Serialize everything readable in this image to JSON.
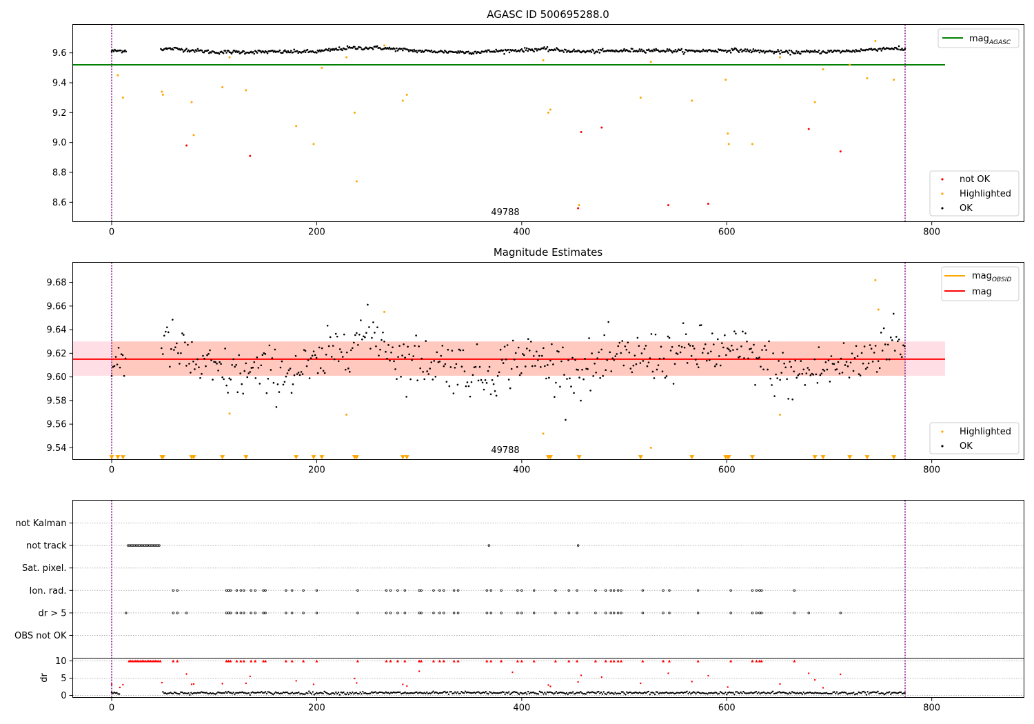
{
  "colors": {
    "ok": "#000000",
    "highlighted": "#ffa500",
    "not_ok": "#ff0000",
    "agasc_line": "#008000",
    "obsid_line": "#ffa500",
    "mag_line": "#ff0000",
    "band_outer": "#ffc0cb",
    "band_inner": "#ffa07a",
    "vline": "#800080"
  },
  "chart_data": [
    {
      "type": "scatter",
      "title": "AGASC ID 500695288.0",
      "xlim": [
        -38,
        890
      ],
      "ylim": [
        8.47,
        9.79
      ],
      "x_ticks": [
        0,
        200,
        400,
        600,
        800
      ],
      "y_ticks": [
        8.6,
        8.8,
        9.0,
        9.2,
        9.4,
        9.6
      ],
      "y_tick_labels": [
        "8.6",
        "8.8",
        "9.0",
        "9.2",
        "9.4",
        "9.6"
      ],
      "annotation": {
        "text": "49788",
        "x": 387,
        "y": 8.53
      },
      "vlines": [
        0,
        774
      ],
      "hline": {
        "label": "mag_AGASC",
        "legend_base": "mag",
        "legend_sub": "AGASC",
        "y": 9.52,
        "x_range": [
          -38,
          813
        ]
      },
      "legend": {
        "position": "upper right",
        "entries": [
          "mag_AGASC"
        ]
      },
      "legend2": {
        "position": "lower right",
        "entries": [
          "not OK",
          "Highlighted",
          "OK"
        ]
      },
      "ok_series": {
        "name": "OK",
        "x_start": 0,
        "x_end": 774,
        "gaps": [
          [
            14,
            48
          ]
        ],
        "mean": 9.615,
        "baseline": [
          [
            0,
            9.612
          ],
          [
            60,
            9.628
          ],
          [
            100,
            9.605
          ],
          [
            200,
            9.608
          ],
          [
            230,
            9.632
          ],
          [
            260,
            9.634
          ],
          [
            300,
            9.612
          ],
          [
            350,
            9.604
          ],
          [
            420,
            9.625
          ],
          [
            460,
            9.608
          ],
          [
            520,
            9.618
          ],
          [
            560,
            9.612
          ],
          [
            610,
            9.618
          ],
          [
            660,
            9.603
          ],
          [
            720,
            9.612
          ],
          [
            760,
            9.632
          ],
          [
            774,
            9.62
          ]
        ],
        "noise": 0.012
      },
      "highlighted": {
        "name": "Highlighted",
        "points": [
          [
            6,
            9.45
          ],
          [
            11,
            9.3
          ],
          [
            49,
            9.34
          ],
          [
            50,
            9.32
          ],
          [
            78,
            9.27
          ],
          [
            80,
            9.05
          ],
          [
            108,
            9.37
          ],
          [
            115,
            9.57
          ],
          [
            131,
            9.35
          ],
          [
            180,
            9.11
          ],
          [
            197,
            8.99
          ],
          [
            205,
            9.5
          ],
          [
            229,
            9.57
          ],
          [
            237,
            9.2
          ],
          [
            239,
            8.74
          ],
          [
            266,
            9.65
          ],
          [
            284,
            9.28
          ],
          [
            288,
            9.32
          ],
          [
            421,
            9.55
          ],
          [
            426,
            9.2
          ],
          [
            428,
            9.22
          ],
          [
            456,
            8.58
          ],
          [
            516,
            9.3
          ],
          [
            526,
            9.54
          ],
          [
            566,
            9.28
          ],
          [
            599,
            9.42
          ],
          [
            601,
            9.06
          ],
          [
            602,
            8.99
          ],
          [
            625,
            8.99
          ],
          [
            652,
            9.57
          ],
          [
            686,
            9.27
          ],
          [
            694,
            9.49
          ],
          [
            720,
            9.52
          ],
          [
            737,
            9.43
          ],
          [
            745,
            9.68
          ],
          [
            763,
            9.42
          ]
        ]
      },
      "not_ok": {
        "name": "not OK",
        "points": [
          [
            73,
            8.98
          ],
          [
            135,
            8.91
          ],
          [
            455,
            8.56
          ],
          [
            458,
            9.07
          ],
          [
            478,
            9.1
          ],
          [
            543,
            8.58
          ],
          [
            582,
            8.59
          ],
          [
            680,
            9.09
          ],
          [
            711,
            8.94
          ]
        ]
      }
    },
    {
      "type": "scatter",
      "title": "Magnitude Estimates",
      "xlim": [
        -38,
        890
      ],
      "ylim": [
        9.53,
        9.697
      ],
      "x_ticks": [
        0,
        200,
        400,
        600,
        800
      ],
      "y_ticks": [
        9.54,
        9.56,
        9.58,
        9.6,
        9.62,
        9.64,
        9.66,
        9.68
      ],
      "y_tick_labels": [
        "9.54",
        "9.56",
        "9.58",
        "9.60",
        "9.62",
        "9.64",
        "9.66",
        "9.68"
      ],
      "annotation": {
        "text": "49788",
        "x": 387,
        "y": 9.538
      },
      "vlines": [
        0,
        774
      ],
      "mag_line": {
        "label": "mag",
        "y": 9.615,
        "x_range": [
          -38,
          813
        ]
      },
      "band_outer": {
        "y": [
          9.601,
          9.63
        ],
        "x_range": [
          -38,
          813
        ]
      },
      "band_inner": {
        "y": [
          9.601,
          9.63
        ],
        "x_range": [
          0,
          774
        ]
      },
      "legend": {
        "position": "upper right",
        "entries": [
          "mag_OBSID",
          "mag"
        ],
        "obsid_base": "mag",
        "obsid_sub": "OBSID"
      },
      "legend2": {
        "position": "lower right",
        "entries": [
          "Highlighted",
          "OK"
        ]
      },
      "highlighted": {
        "name": "Highlighted",
        "points": [
          [
            115,
            9.569
          ],
          [
            229,
            9.568
          ],
          [
            266,
            9.655
          ],
          [
            421,
            9.552
          ],
          [
            526,
            9.54
          ],
          [
            652,
            9.568
          ],
          [
            745,
            9.682
          ],
          [
            748,
            9.657
          ]
        ]
      },
      "triangles_y": 9.532,
      "triangle_x": [
        0,
        6,
        11,
        49,
        50,
        78,
        80,
        108,
        131,
        180,
        197,
        205,
        237,
        239,
        284,
        288,
        426,
        428,
        456,
        516,
        566,
        599,
        601,
        602,
        625,
        686,
        694,
        720,
        737,
        763
      ],
      "ok_series": {
        "name": "OK",
        "x_start": 0,
        "x_end": 774,
        "gaps": [
          [
            14,
            48
          ]
        ],
        "baseline": [
          [
            0,
            9.614
          ],
          [
            55,
            9.628
          ],
          [
            90,
            9.606
          ],
          [
            120,
            9.602
          ],
          [
            170,
            9.604
          ],
          [
            200,
            9.608
          ],
          [
            230,
            9.632
          ],
          [
            260,
            9.636
          ],
          [
            280,
            9.615
          ],
          [
            330,
            9.612
          ],
          [
            360,
            9.6
          ],
          [
            400,
            9.618
          ],
          [
            430,
            9.61
          ],
          [
            460,
            9.605
          ],
          [
            500,
            9.616
          ],
          [
            540,
            9.618
          ],
          [
            580,
            9.622
          ],
          [
            620,
            9.62
          ],
          [
            660,
            9.6
          ],
          [
            700,
            9.608
          ],
          [
            730,
            9.612
          ],
          [
            760,
            9.632
          ],
          [
            774,
            9.622
          ]
        ],
        "noise": 0.011
      }
    },
    {
      "type": "scatter",
      "title": "",
      "xlim": [
        -38,
        890
      ],
      "x_ticks": [
        0,
        200,
        400,
        600,
        800
      ],
      "vlines": [
        0,
        774
      ],
      "flag_rows": [
        "not Kalman",
        "not track",
        "Sat. pixel.",
        "Ion. rad.",
        "dr > 5",
        "OBS not OK"
      ],
      "not_track_x": {
        "dense_range": [
          16,
          48
        ],
        "extra": [
          368,
          455
        ]
      },
      "ion_rad_x": [
        60,
        64,
        112,
        114,
        116,
        122,
        126,
        129,
        136,
        140,
        148,
        150,
        170,
        176,
        187,
        200,
        240,
        268,
        272,
        279,
        286,
        300,
        302,
        314,
        320,
        324,
        334,
        338,
        366,
        370,
        380,
        396,
        400,
        412,
        433,
        446,
        454,
        472,
        482,
        487,
        490,
        494,
        497,
        518,
        538,
        544,
        572,
        604,
        625,
        629,
        632,
        634,
        666
      ],
      "dr_gt5_x": [
        14,
        60,
        64,
        73,
        112,
        114,
        116,
        122,
        126,
        129,
        136,
        140,
        148,
        150,
        170,
        176,
        187,
        200,
        240,
        268,
        272,
        279,
        286,
        300,
        302,
        314,
        320,
        324,
        334,
        338,
        366,
        370,
        380,
        396,
        400,
        412,
        433,
        446,
        454,
        472,
        482,
        487,
        490,
        494,
        497,
        518,
        538,
        544,
        572,
        604,
        625,
        629,
        632,
        634,
        666,
        680,
        711
      ],
      "dr_panel": {
        "ylabel": "dr",
        "ylim": [
          -0.6,
          10.8
        ],
        "y_ticks": [
          0,
          5,
          10
        ],
        "y_tick_labels": [
          "0",
          "5",
          "10"
        ],
        "red_top_y": 10,
        "red_points": [
          [
            0,
            3.2
          ],
          [
            8,
            2.3
          ],
          [
            11,
            3.1
          ],
          [
            49,
            3.7
          ],
          [
            73,
            6.2
          ],
          [
            78,
            3.2
          ],
          [
            80,
            3.3
          ],
          [
            108,
            3.4
          ],
          [
            131,
            3.5
          ],
          [
            135,
            5.5
          ],
          [
            180,
            4.2
          ],
          [
            197,
            3.2
          ],
          [
            237,
            4.9
          ],
          [
            239,
            3.6
          ],
          [
            284,
            3.2
          ],
          [
            288,
            2.7
          ],
          [
            300,
            7.0
          ],
          [
            391,
            6.7
          ],
          [
            426,
            3.0
          ],
          [
            428,
            2.6
          ],
          [
            455,
            3.9
          ],
          [
            458,
            5.8
          ],
          [
            478,
            5.3
          ],
          [
            516,
            3.5
          ],
          [
            543,
            6.4
          ],
          [
            566,
            4.0
          ],
          [
            582,
            5.7
          ],
          [
            601,
            2.4
          ],
          [
            652,
            3.3
          ],
          [
            680,
            6.4
          ],
          [
            686,
            4.5
          ],
          [
            694,
            2.2
          ],
          [
            711,
            6.1
          ]
        ],
        "black_baseline": 0.7,
        "black_noise": 0.5
      }
    }
  ]
}
